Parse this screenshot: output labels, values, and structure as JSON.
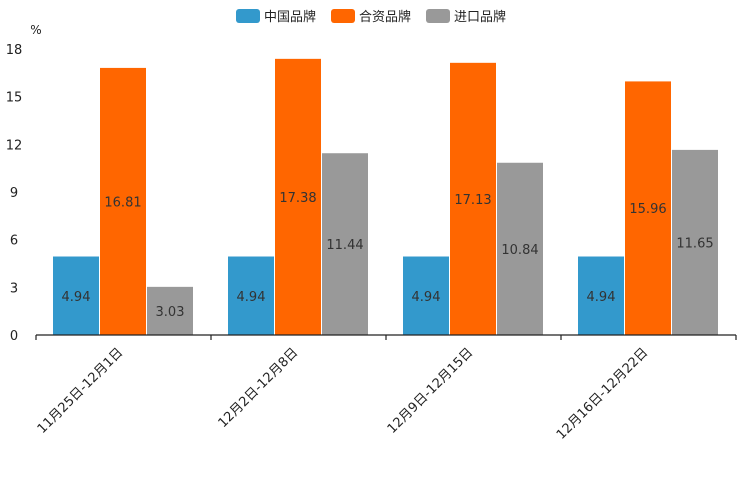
{
  "chart_data": {
    "type": "bar",
    "title": "",
    "xlabel": "",
    "ylabel": "%",
    "ylim": [
      0,
      18
    ],
    "yticks": [
      0,
      3,
      6,
      9,
      12,
      15,
      18
    ],
    "legend_position": "top-center",
    "categories": [
      "11月25日-12月1日",
      "12月2日-12月8日",
      "12月9日-12月15日",
      "12月16日-12月22日"
    ],
    "series": [
      {
        "name": "中国品牌",
        "color": "#3399cc",
        "values": [
          4.94,
          4.94,
          4.94,
          4.94
        ],
        "labels": [
          "4.94",
          "4.94",
          "4.94",
          "4.94"
        ]
      },
      {
        "name": "合资品牌",
        "color": "#ff6600",
        "values": [
          16.81,
          17.38,
          17.13,
          15.96
        ],
        "labels": [
          "16.81",
          "17.38",
          "17.13",
          "15.96"
        ]
      },
      {
        "name": "进口品牌",
        "color": "#999999",
        "values": [
          3.03,
          11.44,
          10.84,
          11.65
        ],
        "labels": [
          "3.03",
          "11.44",
          "10.84",
          "11.65"
        ]
      }
    ]
  }
}
